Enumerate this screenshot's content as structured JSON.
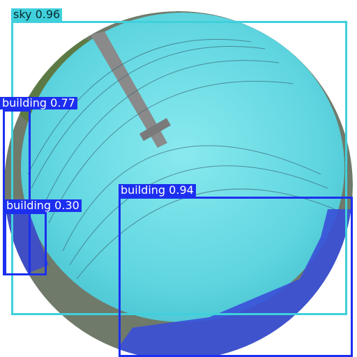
{
  "image": {
    "description_colors": {
      "sky_mask": "#5ed6e0",
      "building_mask": "#3a4fd8",
      "sky_box": "#3fd0dc",
      "building_box": "#1c2ff0"
    }
  },
  "detections": [
    {
      "label": "sky 0.96",
      "class": "sky",
      "score": 0.96
    },
    {
      "label": "building 0.77",
      "class": "building",
      "score": 0.77
    },
    {
      "label": "building 0.94",
      "class": "building",
      "score": 0.94
    },
    {
      "label": "building 0.30",
      "class": "building",
      "score": 0.3
    }
  ]
}
